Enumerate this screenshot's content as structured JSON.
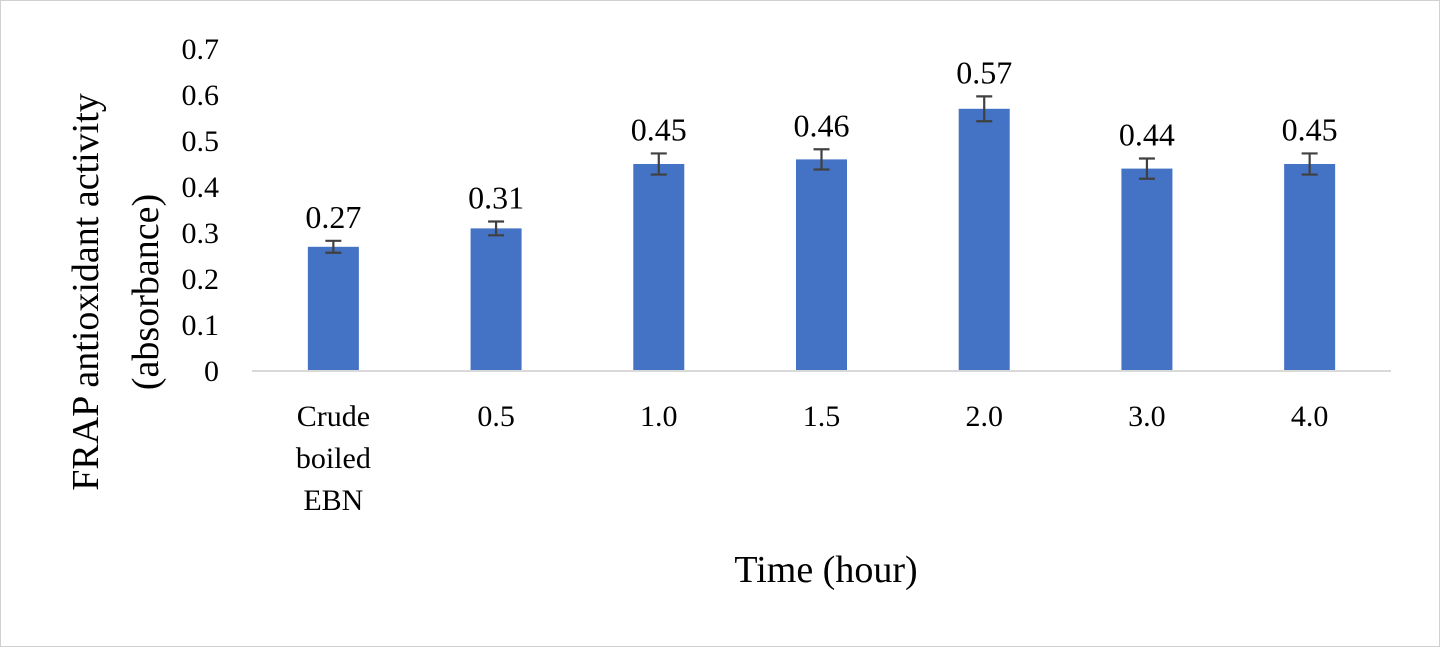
{
  "chart_data": {
    "type": "bar",
    "xlabel": "Time (hour)",
    "ylabel_lines": [
      "FRAP antioxidant activity",
      "(absorbance)"
    ],
    "categories": [
      [
        "Crude",
        "boiled",
        "EBN"
      ],
      [
        "0.5"
      ],
      [
        "1.0"
      ],
      [
        "1.5"
      ],
      [
        "2.0"
      ],
      [
        "3.0"
      ],
      [
        "4.0"
      ]
    ],
    "values": [
      0.27,
      0.31,
      0.45,
      0.46,
      0.57,
      0.44,
      0.45
    ],
    "data_labels": [
      "0.27",
      "0.31",
      "0.45",
      "0.46",
      "0.57",
      "0.44",
      "0.45"
    ],
    "error": [
      0.013,
      0.015,
      0.023,
      0.022,
      0.027,
      0.022,
      0.023
    ],
    "ylim": [
      0,
      0.7
    ],
    "yticks": [
      0,
      0.1,
      0.2,
      0.3,
      0.4,
      0.5,
      0.6,
      0.7
    ],
    "ytick_labels": [
      "0",
      "0.1",
      "0.2",
      "0.3",
      "0.4",
      "0.5",
      "0.6",
      "0.7"
    ],
    "grid": false,
    "legend": "none",
    "colors": {
      "bar": "#4472C4",
      "error_bar": "#404040",
      "axis": "#d9d9d9"
    }
  }
}
